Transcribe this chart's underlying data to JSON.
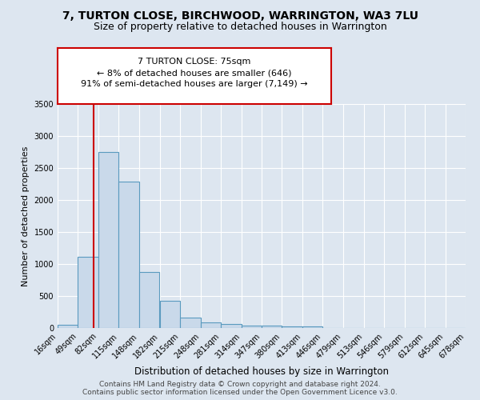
{
  "title": "7, TURTON CLOSE, BIRCHWOOD, WARRINGTON, WA3 7LU",
  "subtitle": "Size of property relative to detached houses in Warrington",
  "xlabel": "Distribution of detached houses by size in Warrington",
  "ylabel": "Number of detached properties",
  "bar_color": "#c9d9ea",
  "bar_edge_color": "#5a9abf",
  "bar_left_edges": [
    16,
    49,
    82,
    115,
    148,
    182,
    215,
    248,
    281,
    314,
    347,
    380,
    413,
    446,
    479,
    513,
    546,
    579,
    612,
    645
  ],
  "bar_heights": [
    55,
    1110,
    2750,
    2290,
    880,
    425,
    165,
    90,
    60,
    40,
    35,
    25,
    25,
    0,
    0,
    0,
    0,
    0,
    0,
    0
  ],
  "bin_width": 33,
  "tick_labels": [
    "16sqm",
    "49sqm",
    "82sqm",
    "115sqm",
    "148sqm",
    "182sqm",
    "215sqm",
    "248sqm",
    "281sqm",
    "314sqm",
    "347sqm",
    "380sqm",
    "413sqm",
    "446sqm",
    "479sqm",
    "513sqm",
    "546sqm",
    "579sqm",
    "612sqm",
    "645sqm",
    "678sqm"
  ],
  "ylim": [
    0,
    3500
  ],
  "red_line_x": 75,
  "annotation_text": "7 TURTON CLOSE: 75sqm\n← 8% of detached houses are smaller (646)\n91% of semi-detached houses are larger (7,149) →",
  "annotation_box_color": "#ffffff",
  "annotation_box_edge_color": "#cc0000",
  "red_line_color": "#cc0000",
  "background_color": "#dde6f0",
  "plot_bg_color": "#dde6f0",
  "grid_color": "#ffffff",
  "footer_line1": "Contains HM Land Registry data © Crown copyright and database right 2024.",
  "footer_line2": "Contains public sector information licensed under the Open Government Licence v3.0.",
  "title_fontsize": 10,
  "subtitle_fontsize": 9
}
